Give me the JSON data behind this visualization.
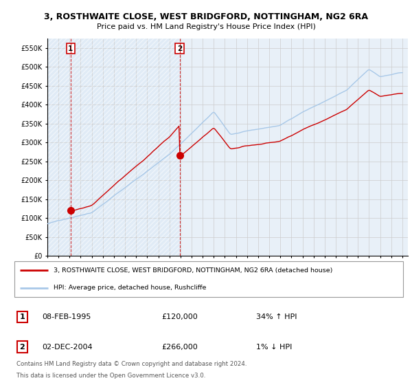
{
  "title": "3, ROSTHWAITE CLOSE, WEST BRIDGFORD, NOTTINGHAM, NG2 6RA",
  "subtitle": "Price paid vs. HM Land Registry's House Price Index (HPI)",
  "ylim": [
    0,
    575000
  ],
  "yticks": [
    0,
    50000,
    100000,
    150000,
    200000,
    250000,
    300000,
    350000,
    400000,
    450000,
    500000,
    550000
  ],
  "ytick_labels": [
    "£0",
    "£50K",
    "£100K",
    "£150K",
    "£200K",
    "£250K",
    "£300K",
    "£350K",
    "£400K",
    "£450K",
    "£500K",
    "£550K"
  ],
  "xlim_start": 1993,
  "xlim_end": 2025.5,
  "sale1_t": 1995.1,
  "sale1_price": 120000,
  "sale1_label": "1",
  "sale1_date_str": "08-FEB-1995",
  "sale1_amount_str": "£120,000",
  "sale1_hpi_str": "34% ↑ HPI",
  "sale2_t": 2004.92,
  "sale2_price": 266000,
  "sale2_label": "2",
  "sale2_date_str": "02-DEC-2004",
  "sale2_amount_str": "£266,000",
  "sale2_hpi_str": "1% ↓ HPI",
  "legend_house": "3, ROSTHWAITE CLOSE, WEST BRIDGFORD, NOTTINGHAM, NG2 6RA (detached house)",
  "legend_hpi": "HPI: Average price, detached house, Rushcliffe",
  "footer_line1": "Contains HM Land Registry data © Crown copyright and database right 2024.",
  "footer_line2": "This data is licensed under the Open Government Licence v3.0.",
  "hpi_color": "#a8c8e8",
  "sale_color": "#cc0000",
  "bg_hatch_color": "#dce8f5",
  "grid_color": "#cccccc",
  "plot_bg": "#ffffff",
  "chart_bg": "#e8f0f8"
}
